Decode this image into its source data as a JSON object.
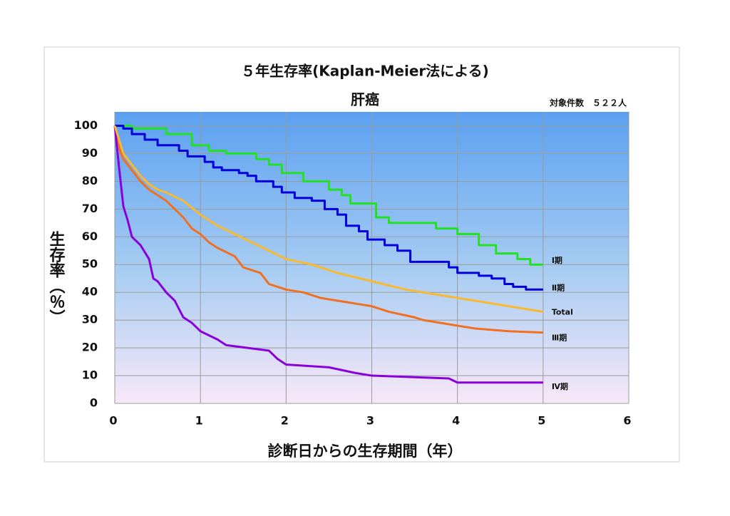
{
  "chart_data": {
    "type": "line",
    "title": "５年生存率(Kaplan-Meier法による)",
    "subtitle": "肝癌",
    "annotation": "対象件数　５２２人",
    "x_label": "診断日からの生存期間（年）",
    "y_label": "生存率（％）",
    "xlim": [
      0,
      6
    ],
    "xticks": [
      0,
      1,
      2,
      3,
      4,
      5,
      6
    ],
    "ylim": [
      0,
      105
    ],
    "yticks": [
      0,
      10,
      20,
      30,
      40,
      50,
      60,
      70,
      80,
      90,
      100
    ],
    "grid": true,
    "series": [
      {
        "name": "Ⅰ期",
        "color": "#22e022",
        "x": [
          0,
          0.2,
          0.2,
          0.6,
          0.6,
          0.9,
          0.9,
          1.1,
          1.1,
          1.3,
          1.3,
          1.65,
          1.65,
          1.8,
          1.8,
          1.95,
          1.95,
          2.2,
          2.2,
          2.5,
          2.5,
          2.65,
          2.65,
          2.75,
          2.75,
          3.05,
          3.05,
          3.2,
          3.2,
          3.75,
          3.75,
          4.0,
          4.0,
          4.25,
          4.25,
          4.45,
          4.45,
          4.7,
          4.7,
          4.85,
          4.85,
          5.0
        ],
        "values": [
          100,
          100,
          99,
          99,
          97,
          97,
          93,
          93,
          91,
          91,
          90,
          90,
          88,
          88,
          86,
          86,
          83,
          83,
          80,
          80,
          77,
          77,
          75,
          75,
          72,
          72,
          67,
          67,
          65,
          65,
          63,
          63,
          61,
          61,
          57,
          57,
          54,
          54,
          52,
          52,
          50,
          50
        ]
      },
      {
        "name": "Ⅱ期",
        "color": "#0000dd",
        "x": [
          0,
          0.1,
          0.1,
          0.2,
          0.2,
          0.35,
          0.35,
          0.5,
          0.5,
          0.75,
          0.75,
          0.85,
          0.85,
          1.05,
          1.05,
          1.15,
          1.15,
          1.25,
          1.25,
          1.45,
          1.45,
          1.55,
          1.55,
          1.65,
          1.65,
          1.85,
          1.85,
          1.95,
          1.95,
          2.1,
          2.1,
          2.3,
          2.3,
          2.45,
          2.45,
          2.6,
          2.6,
          2.7,
          2.7,
          2.85,
          2.85,
          2.95,
          2.95,
          3.15,
          3.15,
          3.3,
          3.3,
          3.45,
          3.45,
          3.9,
          3.9,
          4.0,
          4.0,
          4.25,
          4.25,
          4.4,
          4.4,
          4.55,
          4.55,
          4.65,
          4.65,
          4.8,
          4.8,
          5.0
        ],
        "values": [
          100,
          100,
          99,
          99,
          97,
          97,
          95,
          95,
          93,
          93,
          91,
          91,
          89,
          89,
          87,
          87,
          85,
          85,
          84,
          84,
          83,
          83,
          82,
          82,
          80,
          80,
          78,
          78,
          76,
          76,
          74,
          74,
          73,
          73,
          70,
          70,
          68,
          68,
          64,
          64,
          62,
          62,
          59,
          59,
          57,
          57,
          55,
          55,
          51,
          51,
          49,
          49,
          47,
          47,
          46,
          46,
          45,
          45,
          43,
          43,
          42,
          42,
          41,
          41
        ]
      },
      {
        "name": "Ⅲ期",
        "color": "#f07020",
        "x": [
          0,
          0.05,
          0.1,
          0.2,
          0.3,
          0.4,
          0.5,
          0.6,
          0.7,
          0.8,
          0.9,
          1.0,
          1.1,
          1.2,
          1.4,
          1.5,
          1.7,
          1.8,
          2.0,
          2.2,
          2.4,
          2.6,
          3.0,
          3.2,
          3.5,
          3.6,
          3.8,
          4.0,
          4.2,
          4.6,
          5.0
        ],
        "values": [
          100,
          92,
          88,
          84,
          80,
          77,
          75,
          73,
          70,
          67,
          63,
          61,
          58,
          56,
          53,
          49,
          47,
          43,
          41,
          40,
          38,
          37,
          35,
          33,
          31,
          30,
          29,
          28,
          27,
          26,
          25.5
        ]
      },
      {
        "name": "Ⅳ期",
        "color": "#8a00dd",
        "x": [
          0,
          0.05,
          0.1,
          0.15,
          0.2,
          0.3,
          0.4,
          0.45,
          0.5,
          0.6,
          0.7,
          0.8,
          0.9,
          1.0,
          1.2,
          1.3,
          1.8,
          1.9,
          2.0,
          2.5,
          2.8,
          3.0,
          3.9,
          4.0,
          5.0
        ],
        "values": [
          100,
          85,
          71,
          66,
          60,
          57,
          52,
          45,
          44,
          40,
          37,
          31,
          29,
          26,
          23,
          21,
          19,
          16,
          14,
          13,
          11,
          10,
          9,
          7.5,
          7.5
        ]
      },
      {
        "name": "Total",
        "color": "#f8b830",
        "x": [
          0,
          0.05,
          0.1,
          0.2,
          0.3,
          0.4,
          0.5,
          0.6,
          0.8,
          1.0,
          1.2,
          1.4,
          1.6,
          1.8,
          2.0,
          2.3,
          2.6,
          3.0,
          3.4,
          3.8,
          4.2,
          4.6,
          5.0
        ],
        "values": [
          100,
          95,
          90,
          86,
          82,
          79,
          77,
          76,
          73,
          68,
          64,
          61,
          58,
          55,
          52,
          50,
          47,
          44,
          41,
          39,
          37,
          35,
          33
        ]
      }
    ]
  }
}
